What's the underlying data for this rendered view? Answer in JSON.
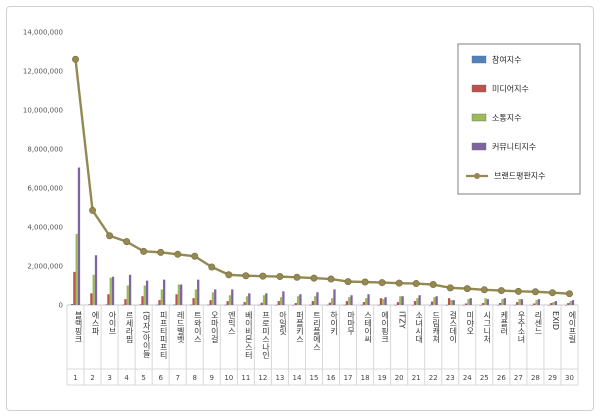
{
  "chart_data": {
    "type": "bar",
    "ylim": [
      0,
      14000000
    ],
    "yticks": [
      "0",
      "2,000,000",
      "4,000,000",
      "6,000,000",
      "8,000,000",
      "10,000,000",
      "12,000,000",
      "14,000,000"
    ],
    "ytick_values": [
      0,
      2000000,
      4000000,
      6000000,
      8000000,
      10000000,
      12000000,
      14000000
    ],
    "grid": false,
    "legend_position": "top-right",
    "categories": [
      "블랙핑크",
      "에스파",
      "아이브",
      "르세라핌",
      "(여자)아이들",
      "피프티피프티",
      "레드벨벳",
      "트와이스",
      "오마이걸",
      "엔믹스",
      "베이비몬스터",
      "프로미스나인",
      "아일릿",
      "퍼플키스",
      "트리플에스",
      "하이키",
      "마마무",
      "스테이씨",
      "에이핑크",
      "ITZY",
      "소녀시대",
      "드림캐쳐",
      "걸스데이",
      "미야오",
      "시그니처",
      "케플러",
      "우주소녀",
      "리센느",
      "EXID",
      "에이프릴"
    ],
    "ranks": [
      "1",
      "2",
      "3",
      "4",
      "5",
      "6",
      "7",
      "8",
      "9",
      "10",
      "11",
      "12",
      "13",
      "14",
      "15",
      "16",
      "17",
      "18",
      "19",
      "20",
      "21",
      "22",
      "23",
      "24",
      "25",
      "26",
      "27",
      "28",
      "29",
      "30"
    ],
    "series": [
      {
        "name": "참여지수",
        "color": "#4f81bd",
        "values": [
          50000,
          30000,
          25000,
          20000,
          25000,
          15000,
          20000,
          18000,
          15000,
          12000,
          12000,
          10000,
          10000,
          8000,
          8000,
          8000,
          8000,
          8000,
          6000,
          6000,
          6000,
          6000,
          5000,
          5000,
          5000,
          5000,
          5000,
          4000,
          4000,
          4000
        ]
      },
      {
        "name": "미디어지수",
        "color": "#c0504d",
        "values": [
          1700000,
          600000,
          550000,
          300000,
          450000,
          250000,
          550000,
          350000,
          250000,
          200000,
          150000,
          120000,
          200000,
          100000,
          200000,
          120000,
          200000,
          150000,
          350000,
          150000,
          200000,
          180000,
          350000,
          80000,
          100000,
          100000,
          150000,
          80000,
          100000,
          100000
        ]
      },
      {
        "name": "소통지수",
        "color": "#9bbb59",
        "values": [
          3650000,
          1550000,
          1400000,
          1000000,
          1000000,
          800000,
          1050000,
          800000,
          650000,
          500000,
          450000,
          500000,
          400000,
          450000,
          450000,
          350000,
          400000,
          350000,
          300000,
          450000,
          350000,
          400000,
          250000,
          300000,
          350000,
          300000,
          300000,
          250000,
          150000,
          200000
        ]
      },
      {
        "name": "커뮤니티지수",
        "color": "#8064a2",
        "values": [
          7050000,
          2550000,
          1450000,
          1550000,
          1250000,
          1300000,
          1050000,
          1300000,
          800000,
          800000,
          600000,
          600000,
          700000,
          550000,
          650000,
          800000,
          500000,
          550000,
          400000,
          450000,
          500000,
          450000,
          250000,
          350000,
          300000,
          350000,
          300000,
          300000,
          200000,
          250000
        ]
      },
      {
        "name": "브랜드평판지수",
        "color": "#938953",
        "values": [
          12600000,
          4850000,
          3550000,
          3250000,
          2750000,
          2700000,
          2600000,
          2500000,
          1950000,
          1550000,
          1500000,
          1480000,
          1460000,
          1420000,
          1380000,
          1330000,
          1200000,
          1180000,
          1150000,
          1120000,
          1100000,
          1050000,
          880000,
          840000,
          780000,
          740000,
          700000,
          680000,
          630000,
          580000
        ]
      }
    ]
  }
}
